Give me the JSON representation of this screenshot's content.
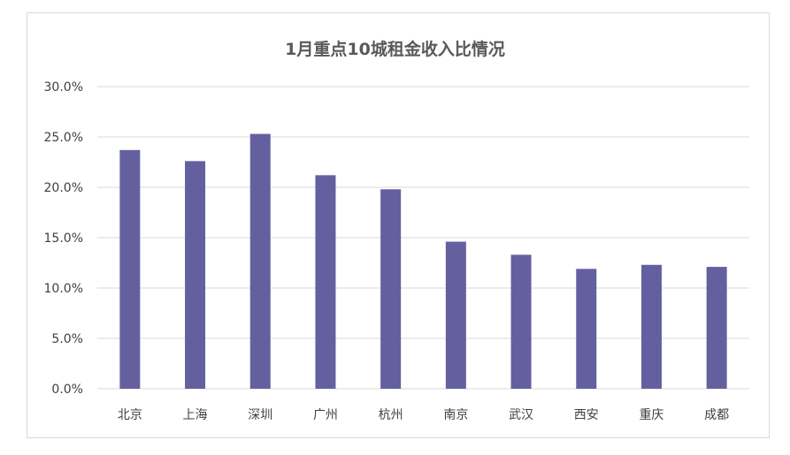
{
  "chart_data": {
    "type": "bar",
    "title": "1月重点10城租金收入比情况",
    "xlabel": "",
    "ylabel": "",
    "categories": [
      "北京",
      "上海",
      "深圳",
      "广州",
      "杭州",
      "南京",
      "武汉",
      "西安",
      "重庆",
      "成都"
    ],
    "values": [
      23.7,
      22.6,
      25.3,
      21.2,
      19.8,
      14.6,
      13.3,
      11.9,
      12.3,
      12.1
    ],
    "ylim": [
      0,
      30
    ],
    "yticks": [
      "0.0%",
      "5.0%",
      "10.0%",
      "15.0%",
      "20.0%",
      "25.0%",
      "30.0%"
    ],
    "grid": true,
    "legend": "none",
    "bar_color": "#6460a0",
    "grid_color": "#d9d9d9"
  }
}
